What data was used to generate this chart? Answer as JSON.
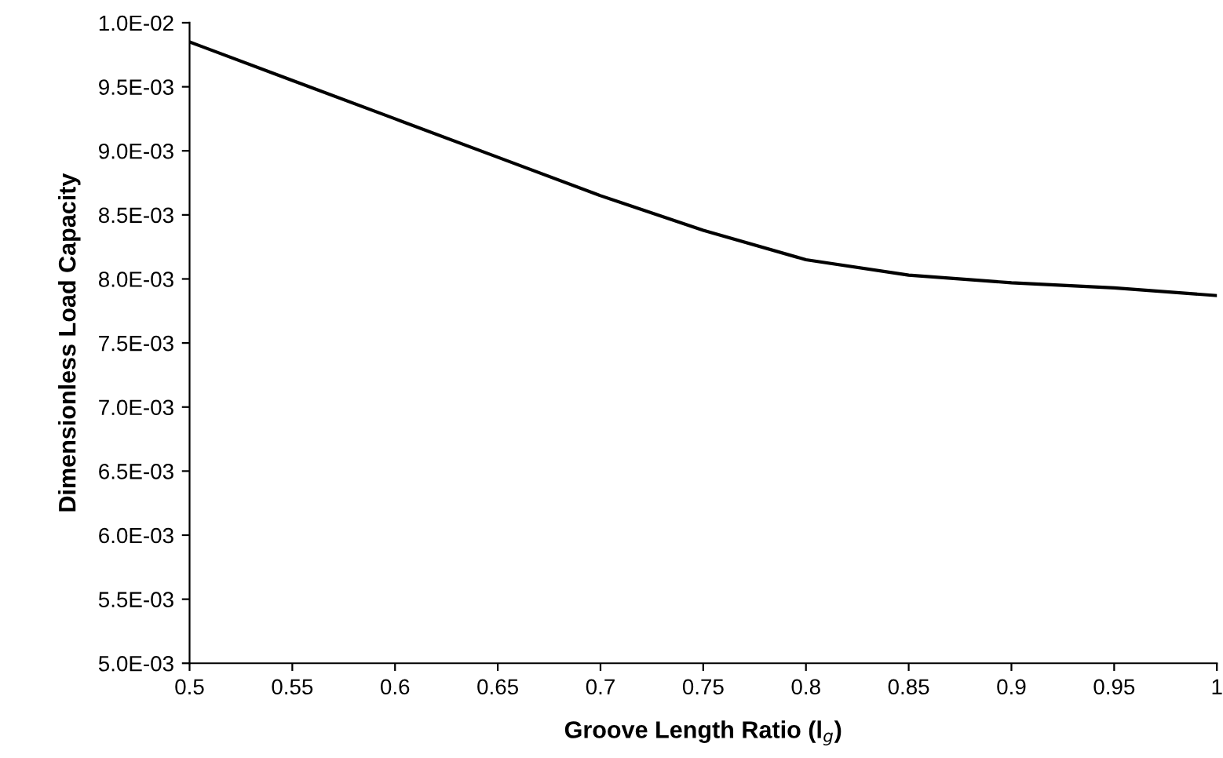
{
  "chart_data": {
    "type": "line",
    "xlabel": "Groove Length Ratio (l$_{g}$)",
    "ylabel": "Dimensionless Load Capacity",
    "x": [
      0.5,
      0.55,
      0.6,
      0.65,
      0.7,
      0.75,
      0.8,
      0.85,
      0.9,
      0.95,
      1.0
    ],
    "series": [
      {
        "color": "#000000",
        "values": [
          0.00985,
          0.00955,
          0.00925,
          0.00895,
          0.00865,
          0.00838,
          0.00815,
          0.00803,
          0.00797,
          0.00793,
          0.00787
        ]
      }
    ],
    "xlim": [
      0.5,
      1
    ],
    "xticks": [
      0.5,
      0.55,
      0.6,
      0.65,
      0.7,
      0.75,
      0.8,
      0.85,
      0.9,
      0.95,
      1
    ],
    "ylim": [
      0.005,
      0.01
    ],
    "yticks": [
      {
        "value": 0.005,
        "label": "5.0E-03"
      },
      {
        "value": 0.0055,
        "label": "5.5E-03"
      },
      {
        "value": 0.006,
        "label": "6.0E-03"
      },
      {
        "value": 0.0065,
        "label": "6.5E-03"
      },
      {
        "value": 0.007,
        "label": "7.0E-03"
      },
      {
        "value": 0.0075,
        "label": "7.5E-03"
      },
      {
        "value": 0.008,
        "label": "8.0E-03"
      },
      {
        "value": 0.0085,
        "label": "8.5E-03"
      },
      {
        "value": 0.009,
        "label": "9.0E-03"
      },
      {
        "value": 0.0095,
        "label": "9.5E-03"
      },
      {
        "value": 0.01,
        "label": "1.0E-02"
      }
    ],
    "grid": false,
    "marker": "none",
    "line_style": "solid"
  }
}
